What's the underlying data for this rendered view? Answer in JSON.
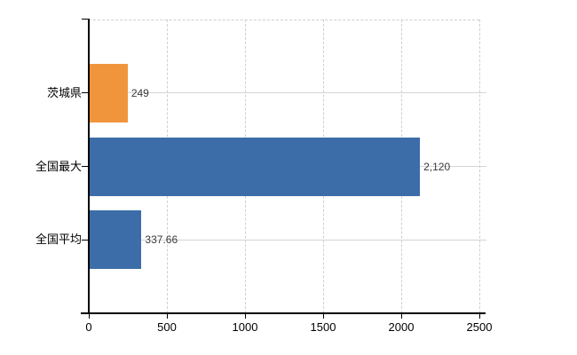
{
  "chart_data": {
    "type": "bar",
    "orientation": "horizontal",
    "title": "",
    "categories": [
      "茨城県",
      "全国最大",
      "全国平均"
    ],
    "values": [
      249,
      2120,
      337.66
    ],
    "value_labels": [
      "249",
      "2,120",
      "337.66"
    ],
    "series_colors": [
      "#f0953c",
      "#3c6da9",
      "#3c6da9"
    ],
    "xlim": [
      0,
      2500
    ],
    "x_ticks": [
      0,
      500,
      1000,
      1500,
      2000,
      2500
    ],
    "x_tick_labels": [
      "0",
      "500",
      "1000",
      "1500",
      "2000",
      "2500"
    ],
    "legend": "none",
    "grid": {
      "vertical_style": "dashed",
      "horizontal_style": "solid",
      "top_border_style": "dashed"
    }
  },
  "colors": {
    "background": "#ffffff",
    "axis": "#000000",
    "grid": "#d2d2d2",
    "bar_highlight": "#f0953c",
    "bar_default": "#3c6da9",
    "value_text": "#3a3a3a",
    "label_text": "#000000"
  }
}
